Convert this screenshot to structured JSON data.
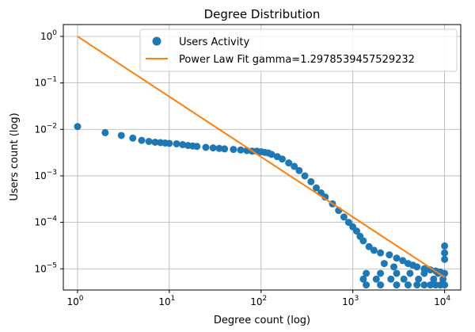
{
  "chart_data": {
    "type": "scatter",
    "title": "Degree Distribution",
    "xlabel": "Degree count (log)",
    "ylabel": "Users count (log)",
    "xscale": "log",
    "yscale": "log",
    "xlim": [
      0.7,
      15000
    ],
    "ylim": [
      3.5e-06,
      1.8
    ],
    "grid": true,
    "legend_position": "top-right",
    "x_ticks": [
      {
        "value": 1,
        "base": "10",
        "exp": "0"
      },
      {
        "value": 10,
        "base": "10",
        "exp": "1"
      },
      {
        "value": 100,
        "base": "10",
        "exp": "2"
      },
      {
        "value": 1000,
        "base": "10",
        "exp": "3"
      },
      {
        "value": 10000,
        "base": "10",
        "exp": "4"
      }
    ],
    "y_ticks": [
      {
        "value": 1,
        "base": "10",
        "exp": "0"
      },
      {
        "value": 0.1,
        "base": "10",
        "exp": "−1"
      },
      {
        "value": 0.01,
        "base": "10",
        "exp": "−2"
      },
      {
        "value": 0.001,
        "base": "10",
        "exp": "−3"
      },
      {
        "value": 0.0001,
        "base": "10",
        "exp": "−4"
      },
      {
        "value": 1e-05,
        "base": "10",
        "exp": "−5"
      }
    ],
    "series": [
      {
        "name": "Users Activity",
        "kind": "scatter",
        "color": "#1f77b4",
        "points": [
          [
            1,
            0.0115
          ],
          [
            2,
            0.0085
          ],
          [
            3,
            0.0074
          ],
          [
            4,
            0.0065
          ],
          [
            5,
            0.0058
          ],
          [
            6,
            0.0055
          ],
          [
            7,
            0.0053
          ],
          [
            8,
            0.0052
          ],
          [
            9,
            0.0051
          ],
          [
            10,
            0.005
          ],
          [
            12,
            0.0049
          ],
          [
            14,
            0.0047
          ],
          [
            16,
            0.0045
          ],
          [
            18,
            0.0044
          ],
          [
            20,
            0.0043
          ],
          [
            25,
            0.0041
          ],
          [
            30,
            0.004
          ],
          [
            35,
            0.0039
          ],
          [
            40,
            0.0038
          ],
          [
            50,
            0.0037
          ],
          [
            60,
            0.0036
          ],
          [
            70,
            0.0035
          ],
          [
            80,
            0.0034
          ],
          [
            90,
            0.0034
          ],
          [
            100,
            0.0033
          ],
          [
            110,
            0.0032
          ],
          [
            120,
            0.0031
          ],
          [
            130,
            0.0029
          ],
          [
            150,
            0.0026
          ],
          [
            170,
            0.0023
          ],
          [
            200,
            0.0019
          ],
          [
            230,
            0.0016
          ],
          [
            260,
            0.0013
          ],
          [
            300,
            0.001
          ],
          [
            350,
            0.00075
          ],
          [
            400,
            0.00055
          ],
          [
            450,
            0.00043
          ],
          [
            500,
            0.00035
          ],
          [
            600,
            0.00025
          ],
          [
            700,
            0.00018
          ],
          [
            800,
            0.00013
          ],
          [
            900,
            0.0001
          ],
          [
            1000,
            8e-05
          ],
          [
            1100,
            6.5e-05
          ],
          [
            1200,
            5e-05
          ],
          [
            1300,
            4e-05
          ],
          [
            1500,
            3e-05
          ],
          [
            1700,
            2.5e-05
          ],
          [
            2000,
            2.2e-05
          ],
          [
            2500,
            2e-05
          ],
          [
            3000,
            1.7e-05
          ],
          [
            3500,
            1.5e-05
          ],
          [
            4000,
            1.3e-05
          ],
          [
            4500,
            1.2e-05
          ],
          [
            5000,
            1.1e-05
          ],
          [
            6000,
            1e-05
          ],
          [
            7000,
            9.5e-06
          ],
          [
            8000,
            9e-06
          ],
          [
            9000,
            8.5e-06
          ],
          [
            10000,
            3.1e-05
          ],
          [
            10000,
            2.2e-05
          ],
          [
            10000,
            1.6e-05
          ],
          [
            2200,
            1.3e-05
          ],
          [
            2800,
            1.1e-05
          ],
          [
            1400,
            4.5e-06
          ],
          [
            2000,
            4.5e-06
          ],
          [
            3000,
            4.5e-06
          ],
          [
            4000,
            4.5e-06
          ],
          [
            5000,
            4.5e-06
          ],
          [
            6000,
            4.5e-06
          ],
          [
            7000,
            4.5e-06
          ],
          [
            8000,
            4.5e-06
          ],
          [
            9000,
            4.5e-06
          ],
          [
            10000,
            4.5e-06
          ],
          [
            1300,
            6e-06
          ],
          [
            1800,
            6e-06
          ],
          [
            2600,
            6e-06
          ],
          [
            3600,
            6e-06
          ],
          [
            5200,
            6e-06
          ],
          [
            7600,
            6e-06
          ],
          [
            9600,
            6e-06
          ],
          [
            1400,
            8e-06
          ],
          [
            2000,
            8e-06
          ],
          [
            3000,
            8e-06
          ],
          [
            4200,
            8e-06
          ],
          [
            6000,
            8e-06
          ],
          [
            8500,
            8e-06
          ],
          [
            10000,
            8e-06
          ]
        ]
      },
      {
        "name": "Power Law Fit gamma=1.2978539457529232",
        "kind": "line",
        "color": "#ff7f0e",
        "gamma": 1.2978539457529232,
        "points": [
          [
            1,
            1.0
          ],
          [
            10000,
            6.6e-06
          ]
        ]
      }
    ]
  }
}
